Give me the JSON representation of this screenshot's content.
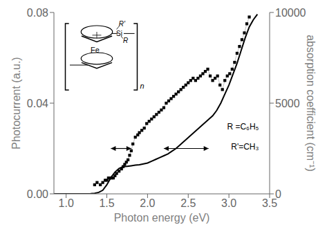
{
  "chart_data": {
    "type": "scatter",
    "xlabel": "Photon energy (eV)",
    "ylabel": "Photocurrent (a.u.)",
    "y2label": "absorption coefficient (cm⁻¹)",
    "xlim": [
      0.85,
      3.5
    ],
    "xticks": [
      {
        "value": 1.0,
        "label": "1.0"
      },
      1.5,
      {
        "value": 2.0,
        "label": "2.0"
      },
      2.5,
      {
        "value": 3.0,
        "label": "3.0"
      },
      3.5
    ],
    "ylim": [
      0.0,
      0.08
    ],
    "yticks": [
      {
        "value": 0.0,
        "label": "0.00"
      },
      0.04,
      0.08
    ],
    "y2lim": [
      0,
      10000
    ],
    "y2ticks": [
      0,
      5000,
      10000
    ],
    "grid": false,
    "series": [
      {
        "type": "scatter",
        "color": "#000000",
        "marker": "square",
        "line_style": "solid",
        "x": [
          1.35,
          1.38,
          1.42,
          1.45,
          1.48,
          1.5,
          1.52,
          1.54,
          1.56,
          1.58,
          1.6,
          1.62,
          1.65,
          1.68,
          1.7,
          1.72,
          1.74,
          1.76,
          1.78,
          1.8,
          1.82,
          1.85,
          1.88,
          1.9,
          1.93,
          1.96,
          1.99,
          2.02,
          2.05,
          2.08,
          2.11,
          2.14,
          2.17,
          2.2,
          2.23,
          2.26,
          2.29,
          2.32,
          2.35,
          2.38,
          2.41,
          2.44,
          2.47,
          2.5,
          2.53,
          2.56,
          2.59,
          2.62,
          2.65,
          2.68,
          2.71,
          2.74,
          2.77,
          2.8,
          2.83,
          2.86,
          2.89,
          2.92,
          2.95,
          2.98,
          3.01,
          3.04,
          3.07,
          3.1,
          3.13,
          3.16,
          3.19,
          3.22,
          3.25
        ],
        "values": [
          0.004,
          0.005,
          0.004,
          0.005,
          0.006,
          0.006,
          0.007,
          0.007,
          0.007,
          0.007,
          0.008,
          0.009,
          0.01,
          0.011,
          0.012,
          0.013,
          0.014,
          0.015,
          0.017,
          0.019,
          0.022,
          0.025,
          0.026,
          0.027,
          0.028,
          0.029,
          0.031,
          0.032,
          0.033,
          0.034,
          0.035,
          0.036,
          0.037,
          0.038,
          0.04,
          0.041,
          0.042,
          0.043,
          0.044,
          0.045,
          0.046,
          0.047,
          0.048,
          0.049,
          0.05,
          0.051,
          0.05,
          0.051,
          0.052,
          0.053,
          0.054,
          0.055,
          0.052,
          0.05,
          0.051,
          0.052,
          0.048,
          0.046,
          0.05,
          0.052,
          0.053,
          0.055,
          0.058,
          0.062,
          0.065,
          0.068,
          0.071,
          0.075,
          0.078
        ]
      },
      {
        "type": "line",
        "color": "#000000",
        "axis": "y2",
        "x": [
          0.85,
          0.9,
          0.95,
          1.0,
          1.05,
          1.1,
          1.15,
          1.2,
          1.25,
          1.3,
          1.35,
          1.4,
          1.45,
          1.5,
          1.55,
          1.6,
          1.65,
          1.7,
          1.75,
          1.8,
          1.85,
          1.9,
          1.95,
          2.0,
          2.05,
          2.1,
          2.15,
          2.2,
          2.25,
          2.3,
          2.35,
          2.4,
          2.45,
          2.5,
          2.55,
          2.6,
          2.65,
          2.7,
          2.75,
          2.8,
          2.85,
          2.9,
          2.95,
          3.0,
          3.05,
          3.1,
          3.15,
          3.2,
          3.25,
          3.3,
          3.35
        ],
        "values": [
          0,
          0,
          0,
          0,
          0,
          0,
          0,
          0,
          0,
          10,
          30,
          80,
          200,
          500,
          900,
          1200,
          1400,
          1500,
          1520,
          1550,
          1580,
          1600,
          1650,
          1700,
          1800,
          1900,
          2000,
          2100,
          2200,
          2350,
          2500,
          2700,
          2900,
          3100,
          3300,
          3500,
          3700,
          3900,
          4100,
          4300,
          4600,
          5000,
          5500,
          6000,
          6600,
          7200,
          7900,
          8600,
          9200,
          9600,
          9900
        ]
      }
    ],
    "arrows": [
      {
        "x": [
          1.55,
          1.8
        ],
        "y": [
          0.02,
          0.02
        ]
      },
      {
        "x": [
          2.2,
          2.75
        ],
        "y": [
          0.02,
          0.02
        ]
      }
    ],
    "annotations": [
      "n",
      "Fe",
      "Si",
      "R'",
      "R",
      "R =C₆H₅",
      "R'=CH₃"
    ]
  }
}
